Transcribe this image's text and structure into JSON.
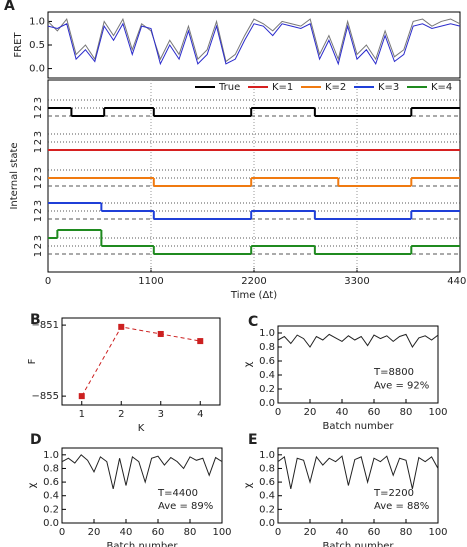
{
  "chart_data": [
    {
      "type": "line",
      "panel": "A",
      "ylabel": "FRET",
      "xlim": [
        0,
        4400
      ],
      "ylim": [
        -0.2,
        1.2
      ],
      "yticks": [
        {
          "value": 0,
          "label": "0.0"
        },
        {
          "value": 0.5,
          "label": "0.5"
        },
        {
          "value": 1,
          "label": "1.0"
        }
      ],
      "x": [
        0,
        100,
        200,
        300,
        400,
        500,
        600,
        700,
        800,
        900,
        1000,
        1100,
        1200,
        1300,
        1400,
        1500,
        1600,
        1700,
        1800,
        1900,
        2000,
        2100,
        2200,
        2300,
        2400,
        2500,
        2600,
        2700,
        2800,
        2900,
        3000,
        3100,
        3200,
        3300,
        3400,
        3500,
        3600,
        3700,
        3800,
        3900,
        4000,
        4100,
        4200,
        4300,
        4400
      ],
      "series": [
        {
          "color": "#777777",
          "values": [
            1.0,
            0.8,
            1.05,
            0.3,
            0.5,
            0.2,
            1.0,
            0.7,
            1.05,
            0.4,
            0.95,
            0.8,
            0.2,
            0.6,
            0.3,
            0.9,
            0.2,
            0.4,
            1.0,
            0.15,
            0.3,
            0.7,
            1.05,
            0.95,
            0.8,
            1.0,
            0.95,
            0.9,
            1.05,
            0.3,
            0.7,
            0.2,
            1.0,
            0.3,
            0.5,
            0.2,
            0.8,
            0.25,
            0.4,
            1.0,
            1.05,
            0.9,
            1.0,
            1.05,
            0.95
          ]
        },
        {
          "color": "#2b2bcc",
          "values": [
            0.9,
            0.85,
            0.95,
            0.2,
            0.4,
            0.15,
            0.9,
            0.6,
            0.95,
            0.3,
            0.9,
            0.85,
            0.1,
            0.5,
            0.2,
            0.8,
            0.1,
            0.3,
            0.9,
            0.1,
            0.2,
            0.6,
            0.95,
            0.9,
            0.7,
            0.95,
            0.9,
            0.85,
            0.95,
            0.2,
            0.6,
            0.1,
            0.9,
            0.2,
            0.4,
            0.1,
            0.7,
            0.15,
            0.3,
            0.9,
            0.95,
            0.85,
            0.9,
            0.95,
            0.9
          ]
        }
      ]
    },
    {
      "type": "step",
      "ylabel": "Internal state",
      "xlabel": "Time (Δt)",
      "xlim": [
        0,
        4400
      ],
      "xticks": [
        0,
        1100,
        2200,
        3300,
        4400
      ],
      "grid": true,
      "legend": "top-right",
      "state_ticks": [
        1,
        2,
        3
      ],
      "series": [
        {
          "name": "True",
          "color": "#000000",
          "x": [
            0,
            250,
            600,
            1130,
            2170,
            2850,
            3880
          ],
          "values": [
            2,
            1,
            2,
            1,
            2,
            1,
            2
          ]
        },
        {
          "name": "K=1",
          "color": "#d62020",
          "x": [
            0
          ],
          "values": [
            1
          ]
        },
        {
          "name": "K=2",
          "color": "#f07a10",
          "x": [
            0,
            1130,
            2170,
            3100,
            3880
          ],
          "values": [
            2,
            1,
            2,
            1,
            2
          ]
        },
        {
          "name": "K=3",
          "color": "#1f3fd8",
          "x": [
            0,
            570,
            1130,
            2170,
            2850,
            3880
          ],
          "values": [
            3,
            2,
            1,
            2,
            1,
            2
          ]
        },
        {
          "name": "K=4",
          "color": "#1f8a1f",
          "x": [
            0,
            100,
            570,
            1130,
            2170,
            2850,
            3880
          ],
          "values": [
            3,
            4,
            2,
            1,
            2,
            1,
            2
          ]
        }
      ]
    },
    {
      "type": "line",
      "panel": "B",
      "xlabel": "K",
      "ylabel": "F",
      "xlim": [
        0.5,
        4.5
      ],
      "ylim": [
        -855.5,
        -850.6
      ],
      "xticks": [
        1,
        2,
        3,
        4
      ],
      "yticks": [
        {
          "value": -851,
          "label": "−851"
        },
        {
          "value": -855,
          "label": "−855"
        }
      ],
      "linestyle": "dashed",
      "marker": "square",
      "x": [
        1,
        2,
        3,
        4
      ],
      "series": [
        {
          "color": "#cc2020",
          "values": [
            -855,
            -851.1,
            -851.5,
            -851.9
          ]
        }
      ]
    },
    {
      "type": "line",
      "panel": "C",
      "xlabel": "Batch number",
      "ylabel": "χ",
      "xlim": [
        0,
        100
      ],
      "ylim": [
        0,
        1.1
      ],
      "xticks": [
        0,
        20,
        40,
        60,
        80,
        100
      ],
      "yticks": [
        {
          "value": 0,
          "label": "0.0"
        },
        {
          "value": 0.2,
          "label": "0.2"
        },
        {
          "value": 0.4,
          "label": "0.4"
        },
        {
          "value": 0.6,
          "label": "0.6"
        },
        {
          "value": 0.8,
          "label": "0.8"
        },
        {
          "value": 1,
          "label": "1.0"
        }
      ],
      "annotations": [
        "T=8800",
        "Ave = 92%"
      ],
      "x": [
        0,
        4,
        8,
        12,
        16,
        20,
        24,
        28,
        32,
        36,
        40,
        44,
        48,
        52,
        56,
        60,
        64,
        68,
        72,
        76,
        80,
        84,
        88,
        92,
        96,
        100
      ],
      "series": [
        {
          "color": "#222222",
          "values": [
            0.9,
            0.95,
            0.85,
            0.97,
            0.92,
            0.8,
            0.95,
            0.9,
            0.98,
            0.93,
            0.88,
            0.96,
            0.9,
            0.95,
            0.82,
            0.97,
            0.92,
            0.96,
            0.88,
            0.95,
            0.98,
            0.8,
            0.93,
            0.96,
            0.9,
            0.97
          ]
        }
      ]
    },
    {
      "type": "line",
      "panel": "D",
      "xlabel": "Batch number",
      "ylabel": "χ",
      "xlim": [
        0,
        100
      ],
      "ylim": [
        0,
        1.1
      ],
      "xticks": [
        0,
        20,
        40,
        60,
        80,
        100
      ],
      "yticks": [
        {
          "value": 0,
          "label": "0.0"
        },
        {
          "value": 0.2,
          "label": "0.2"
        },
        {
          "value": 0.4,
          "label": "0.4"
        },
        {
          "value": 0.6,
          "label": "0.6"
        },
        {
          "value": 0.8,
          "label": "0.8"
        },
        {
          "value": 1,
          "label": "1.0"
        }
      ],
      "annotations": [
        "T=4400",
        "Ave = 89%"
      ],
      "x": [
        0,
        4,
        8,
        12,
        16,
        20,
        24,
        28,
        32,
        36,
        40,
        44,
        48,
        52,
        56,
        60,
        64,
        68,
        72,
        76,
        80,
        84,
        88,
        92,
        96,
        100
      ],
      "series": [
        {
          "color": "#222222",
          "values": [
            0.9,
            0.95,
            0.88,
            1.0,
            0.92,
            0.75,
            0.97,
            0.9,
            0.5,
            0.95,
            0.55,
            0.97,
            0.9,
            0.6,
            0.95,
            0.98,
            0.85,
            0.96,
            0.9,
            0.8,
            0.97,
            0.92,
            0.95,
            0.7,
            0.96,
            0.9
          ]
        }
      ]
    },
    {
      "type": "line",
      "panel": "E",
      "xlabel": "Batch number",
      "ylabel": "χ",
      "xlim": [
        0,
        100
      ],
      "ylim": [
        0,
        1.1
      ],
      "xticks": [
        0,
        20,
        40,
        60,
        80,
        100
      ],
      "yticks": [
        {
          "value": 0,
          "label": "0.0"
        },
        {
          "value": 0.2,
          "label": "0.2"
        },
        {
          "value": 0.4,
          "label": "0.4"
        },
        {
          "value": 0.6,
          "label": "0.6"
        },
        {
          "value": 0.8,
          "label": "0.8"
        },
        {
          "value": 1,
          "label": "1.0"
        }
      ],
      "annotations": [
        "T=2200",
        "Ave = 88%"
      ],
      "x": [
        0,
        4,
        8,
        12,
        16,
        20,
        24,
        28,
        32,
        36,
        40,
        44,
        48,
        52,
        56,
        60,
        64,
        68,
        72,
        76,
        80,
        84,
        88,
        92,
        96,
        100
      ],
      "series": [
        {
          "color": "#222222",
          "values": [
            0.9,
            0.97,
            0.5,
            0.95,
            0.92,
            0.6,
            0.97,
            0.85,
            0.95,
            0.9,
            0.98,
            0.55,
            0.93,
            0.97,
            0.6,
            0.95,
            0.9,
            0.98,
            0.7,
            0.95,
            0.92,
            0.5,
            0.96,
            0.9,
            0.97,
            0.8
          ]
        }
      ]
    }
  ]
}
